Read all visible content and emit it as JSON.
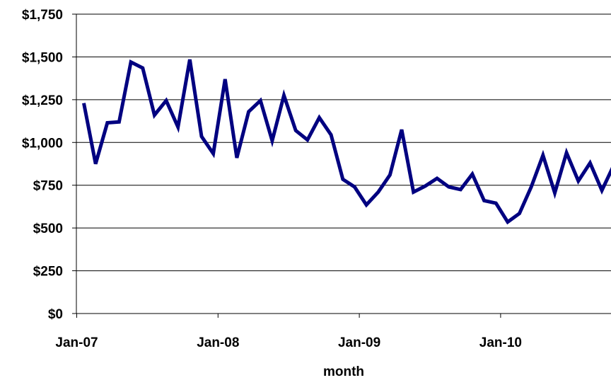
{
  "chart_data": {
    "type": "line",
    "title": "",
    "xlabel": "month",
    "ylabel": "",
    "ylim": [
      0,
      1750
    ],
    "y_ticks": [
      {
        "value": 0,
        "label": "$0"
      },
      {
        "value": 250,
        "label": "$250"
      },
      {
        "value": 500,
        "label": "$500"
      },
      {
        "value": 750,
        "label": "$750"
      },
      {
        "value": 1000,
        "label": "$1,000"
      },
      {
        "value": 1250,
        "label": "$1,250"
      },
      {
        "value": 1500,
        "label": "$1,500"
      },
      {
        "value": 1750,
        "label": "$1,750"
      }
    ],
    "x_ticks": [
      {
        "value": "2007-01",
        "label": "Jan-07"
      },
      {
        "value": "2008-01",
        "label": "Jan-08"
      },
      {
        "value": "2009-01",
        "label": "Jan-09"
      },
      {
        "value": "2010-01",
        "label": "Jan-10"
      }
    ],
    "x_range": [
      "2006-12",
      "2010-09"
    ],
    "grid": "horizontal",
    "legend": "none",
    "series": [
      {
        "color": "#000080",
        "x": [
          "2007-01",
          "2007-02",
          "2007-03",
          "2007-04",
          "2007-05",
          "2007-06",
          "2007-07",
          "2007-08",
          "2007-09",
          "2007-10",
          "2007-11",
          "2007-12",
          "2008-01",
          "2008-02",
          "2008-03",
          "2008-04",
          "2008-05",
          "2008-06",
          "2008-07",
          "2008-08",
          "2008-09",
          "2008-10",
          "2008-11",
          "2008-12",
          "2009-01",
          "2009-02",
          "2009-03",
          "2009-04",
          "2009-05",
          "2009-06",
          "2009-07",
          "2009-08",
          "2009-09",
          "2009-10",
          "2009-11",
          "2009-12",
          "2010-01",
          "2010-02",
          "2010-03",
          "2010-04",
          "2010-05",
          "2010-06",
          "2010-07",
          "2010-08",
          "2010-09"
        ],
        "values": [
          1230,
          875,
          1115,
          1120,
          1470,
          1435,
          1160,
          1245,
          1090,
          1485,
          1035,
          935,
          1370,
          910,
          1180,
          1245,
          1010,
          1275,
          1070,
          1015,
          1145,
          1045,
          785,
          740,
          635,
          710,
          810,
          1075,
          710,
          745,
          790,
          740,
          725,
          815,
          660,
          645,
          535,
          585,
          740,
          925,
          705,
          940,
          775,
          880,
          720
        ]
      }
    ],
    "partial_last_point": {
      "x": "2010-10",
      "value": 865
    }
  }
}
